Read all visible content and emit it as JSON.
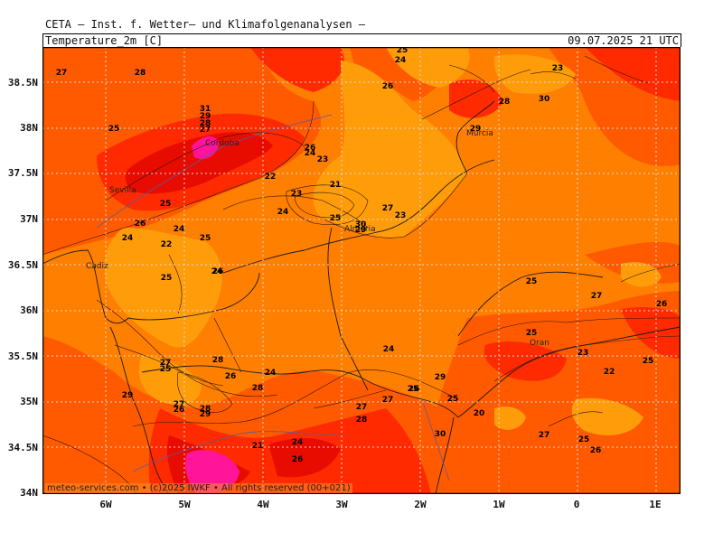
{
  "header": {
    "organization": "CETA — Inst. f. Wetter— und Klimafolgenanalysen —",
    "field_label": "Temperature_2m [C]",
    "datetime": "09.07.2025  21 UTC"
  },
  "axes": {
    "lat_labels": [
      "38.5N",
      "38N",
      "37.5N",
      "37N",
      "36.5N",
      "36N",
      "35.5N",
      "35N",
      "34.5N",
      "34N"
    ],
    "lon_labels": [
      "6W",
      "5W",
      "4W",
      "3W",
      "2W",
      "1W",
      "0",
      "1E"
    ]
  },
  "cities": [
    "Cordoba",
    "Sevilla",
    "Murcia",
    "Almeria",
    "Cadiz",
    "Oran"
  ],
  "contour_labels": [
    "27",
    "28",
    "25",
    "24",
    "23",
    "26",
    "28",
    "29",
    "30",
    "31",
    "29",
    "28",
    "27",
    "25",
    "26",
    "24",
    "23",
    "21",
    "22",
    "23",
    "24",
    "25",
    "30",
    "29",
    "27",
    "23",
    "25",
    "26",
    "24",
    "22",
    "24",
    "25",
    "24",
    "25",
    "26",
    "25",
    "27",
    "26",
    "25",
    "23",
    "22",
    "25",
    "24",
    "27",
    "25",
    "28",
    "26",
    "24",
    "28",
    "29",
    "27",
    "26",
    "28",
    "29",
    "29",
    "26",
    "27",
    "25",
    "25",
    "20",
    "27",
    "28",
    "30",
    "21",
    "24",
    "26",
    "27",
    "25",
    "26"
  ],
  "colors": {
    "orange": "#ff7f00",
    "light_orange": "#ff9c0a",
    "dark_orange": "#ff5a00",
    "red": "#ff2a00",
    "deep_red": "#e80c00",
    "magenta": "#ff149a",
    "grid": "#d8d8d8"
  },
  "footer": "meteo-services.com • (c)2025 IWKF • All rights reserved (00+021)"
}
